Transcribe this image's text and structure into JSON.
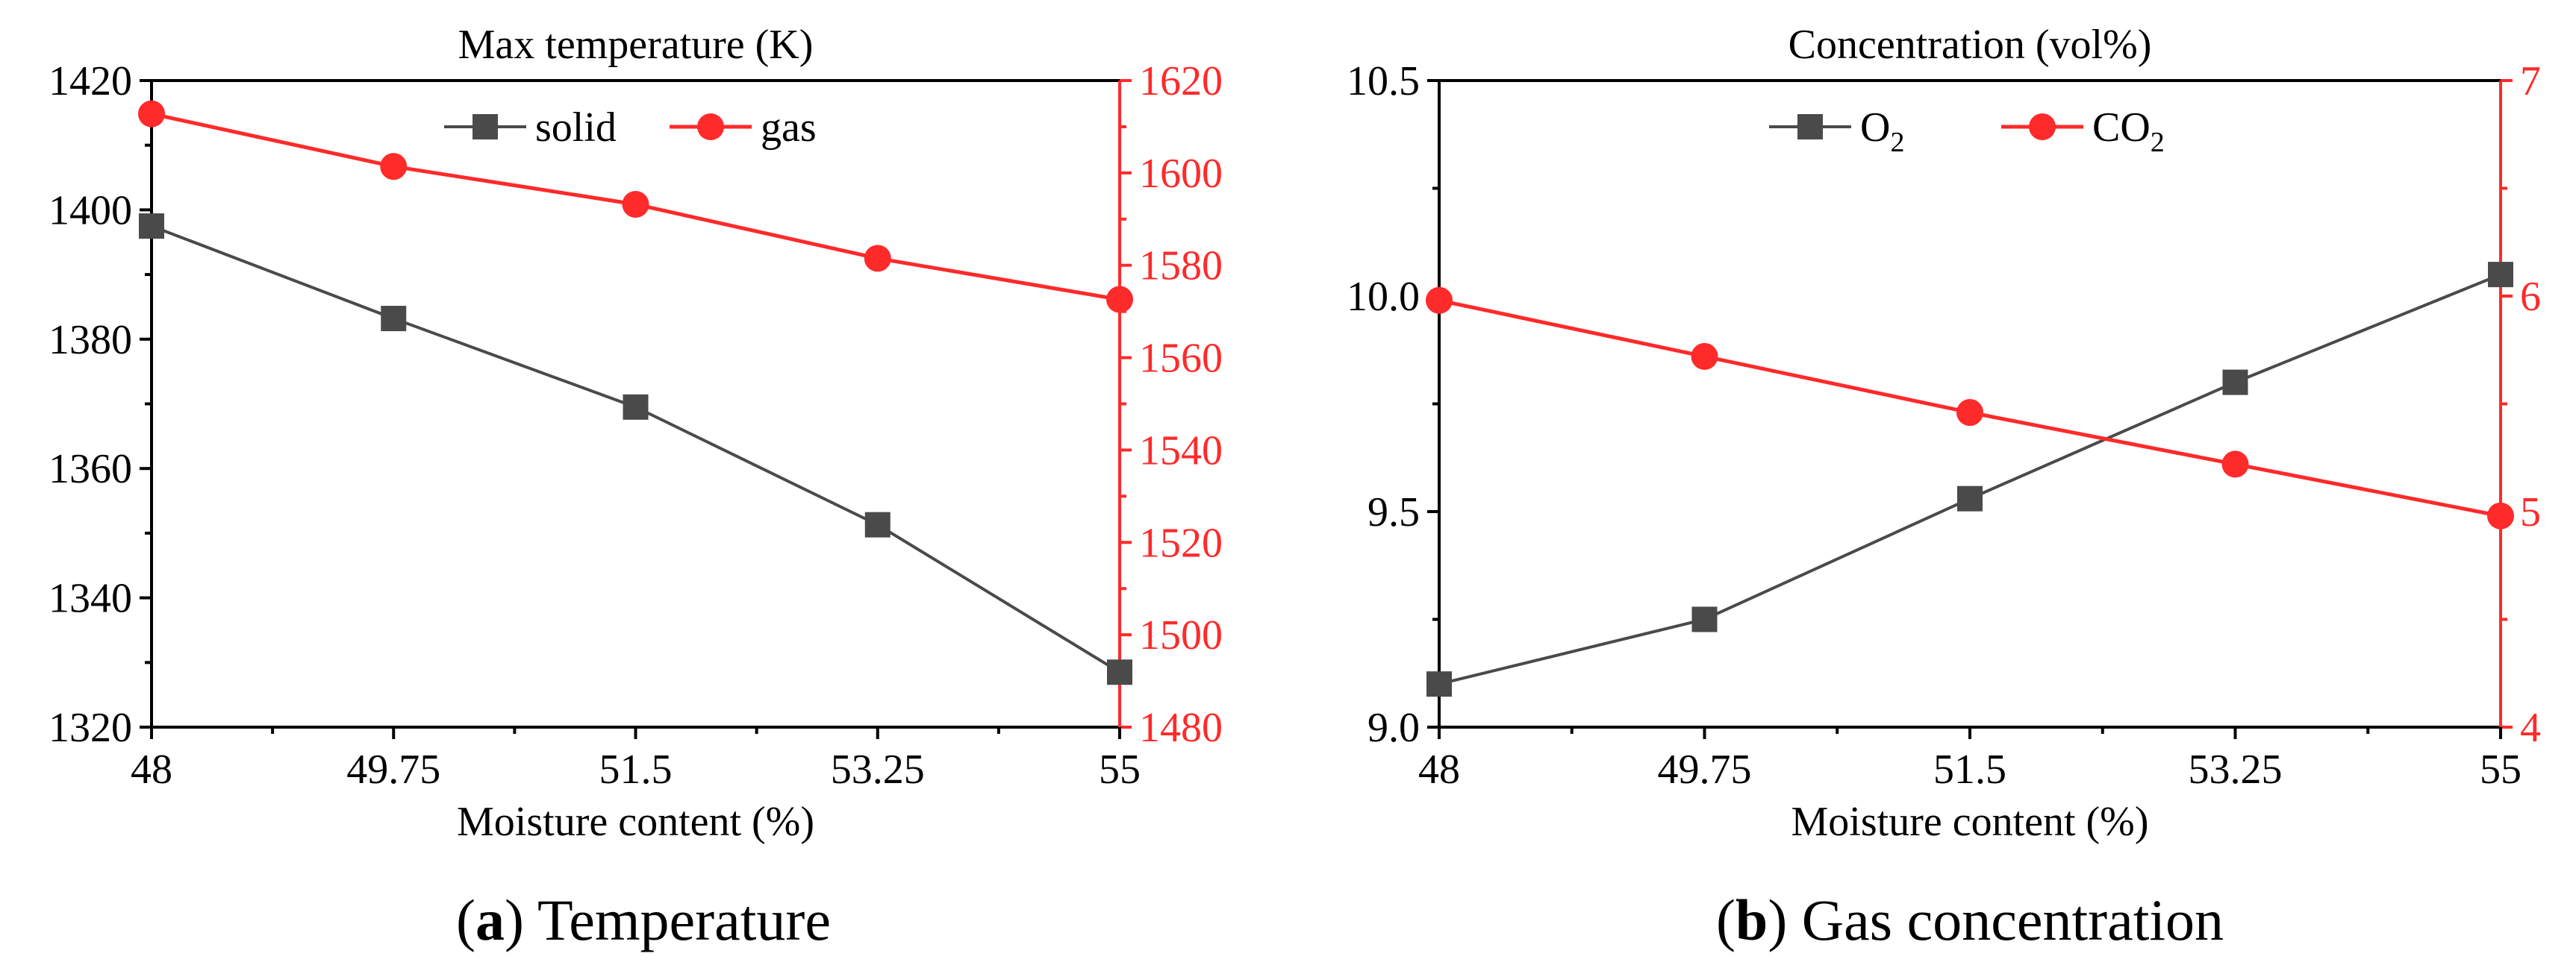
{
  "figure": {
    "colors": {
      "axis": "#000000",
      "solid": "#4a4a4a",
      "gas": "#ff2a2a"
    }
  },
  "chart_data": [
    {
      "id": "a",
      "type": "line",
      "title": "Max temperature (K)",
      "xlabel": "Moisture content (%)",
      "caption_letter": "a",
      "caption_rest": ") Temperature",
      "x": [
        48,
        49.75,
        51.5,
        53.25,
        55
      ],
      "xticks": [
        "48",
        "49.75",
        "51.5",
        "53.25",
        "55"
      ],
      "xlim": [
        48,
        55
      ],
      "ylim_left": [
        1320,
        1420
      ],
      "yticks_left": [
        "1320",
        "1340",
        "1360",
        "1380",
        "1400",
        "1420"
      ],
      "ylim_right": [
        1480,
        1620
      ],
      "yticks_right": [
        "1480",
        "1500",
        "1520",
        "1540",
        "1560",
        "1580",
        "1600",
        "1620"
      ],
      "legend_position": "top-center",
      "series": [
        {
          "name": "solid",
          "label": "solid",
          "sub": "",
          "axis": "left",
          "marker": "square",
          "color": "#4a4a4a",
          "values": [
            1397.5,
            1383.2,
            1369.5,
            1351.3,
            1328.5
          ]
        },
        {
          "name": "gas",
          "label": "gas",
          "sub": "",
          "axis": "right",
          "marker": "circle",
          "color": "#ff2a2a",
          "values": [
            1612.8,
            1601.4,
            1593.2,
            1581.5,
            1572.6
          ]
        }
      ]
    },
    {
      "id": "b",
      "type": "line",
      "title": "Concentration (vol%)",
      "xlabel": "Moisture content (%)",
      "caption_letter": "b",
      "caption_rest": ") Gas concentration",
      "x": [
        48,
        49.75,
        51.5,
        53.25,
        55
      ],
      "xticks": [
        "48",
        "49.75",
        "51.5",
        "53.25",
        "55"
      ],
      "xlim": [
        48,
        55
      ],
      "ylim_left": [
        9.0,
        10.5
      ],
      "yticks_left": [
        "9.0",
        "9.5",
        "10.0",
        "10.5"
      ],
      "ylim_right": [
        4,
        7
      ],
      "yticks_right": [
        "4",
        "5",
        "6",
        "7"
      ],
      "legend_position": "top-center",
      "series": [
        {
          "name": "O2",
          "label": "O",
          "sub": "2",
          "axis": "left",
          "marker": "square",
          "color": "#4a4a4a",
          "values": [
            9.1,
            9.25,
            9.53,
            9.8,
            10.05
          ]
        },
        {
          "name": "CO2",
          "label": "CO",
          "sub": "2",
          "axis": "right",
          "marker": "circle",
          "color": "#ff2a2a",
          "values": [
            5.98,
            5.72,
            5.46,
            5.22,
            4.98
          ]
        }
      ]
    }
  ]
}
